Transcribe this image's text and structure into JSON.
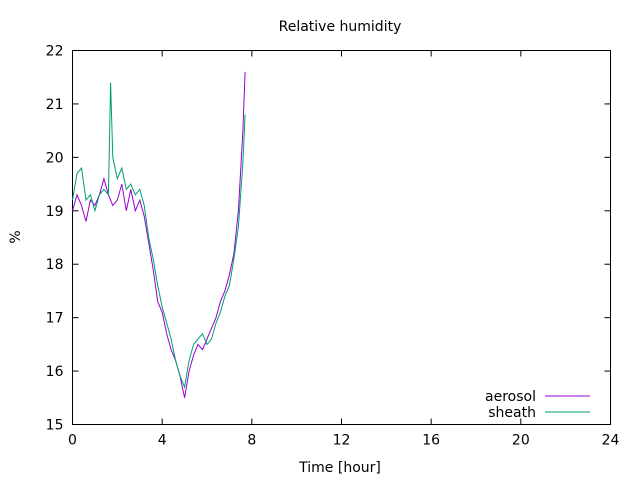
{
  "chart_data": {
    "type": "line",
    "title": "Relative humidity",
    "xlabel": "Time [hour]",
    "ylabel": "%",
    "xlim": [
      0,
      24
    ],
    "ylim": [
      15,
      22
    ],
    "xticks": [
      0,
      4,
      8,
      12,
      16,
      20,
      24
    ],
    "yticks": [
      15,
      16,
      17,
      18,
      19,
      20,
      21,
      22
    ],
    "grid": false,
    "legend_position": "bottom-right",
    "series": [
      {
        "name": "aerosol",
        "color": "#9400d3",
        "x": [
          0,
          0.2,
          0.4,
          0.6,
          0.8,
          1.0,
          1.2,
          1.4,
          1.6,
          1.8,
          2.0,
          2.2,
          2.4,
          2.6,
          2.8,
          3.0,
          3.2,
          3.4,
          3.6,
          3.8,
          4.0,
          4.2,
          4.4,
          4.6,
          4.8,
          5.0,
          5.2,
          5.4,
          5.6,
          5.8,
          6.0,
          6.2,
          6.4,
          6.6,
          6.8,
          7.0,
          7.2,
          7.4,
          7.6,
          7.7
        ],
        "y": [
          19.0,
          19.3,
          19.1,
          18.8,
          19.2,
          19.1,
          19.3,
          19.6,
          19.3,
          19.1,
          19.2,
          19.5,
          19.0,
          19.4,
          19.0,
          19.2,
          18.9,
          18.4,
          17.9,
          17.3,
          17.1,
          16.7,
          16.4,
          16.2,
          15.9,
          15.5,
          16.0,
          16.3,
          16.5,
          16.4,
          16.6,
          16.8,
          17.0,
          17.3,
          17.5,
          17.8,
          18.2,
          19.0,
          20.5,
          21.6
        ]
      },
      {
        "name": "sheath",
        "color": "#009e73",
        "x": [
          0,
          0.2,
          0.4,
          0.6,
          0.8,
          1.0,
          1.2,
          1.4,
          1.6,
          1.7,
          1.8,
          2.0,
          2.2,
          2.4,
          2.6,
          2.8,
          3.0,
          3.2,
          3.4,
          3.6,
          3.8,
          4.0,
          4.2,
          4.4,
          4.6,
          4.8,
          5.0,
          5.2,
          5.4,
          5.6,
          5.8,
          6.0,
          6.2,
          6.4,
          6.6,
          6.8,
          7.0,
          7.2,
          7.4,
          7.6,
          7.7
        ],
        "y": [
          19.2,
          19.7,
          19.8,
          19.2,
          19.3,
          19.0,
          19.3,
          19.4,
          19.3,
          21.4,
          20.0,
          19.6,
          19.8,
          19.4,
          19.5,
          19.3,
          19.4,
          19.1,
          18.5,
          18.1,
          17.6,
          17.2,
          16.9,
          16.6,
          16.2,
          15.9,
          15.7,
          16.2,
          16.5,
          16.6,
          16.7,
          16.5,
          16.6,
          16.9,
          17.1,
          17.4,
          17.6,
          18.1,
          18.7,
          19.9,
          20.8
        ]
      }
    ]
  }
}
